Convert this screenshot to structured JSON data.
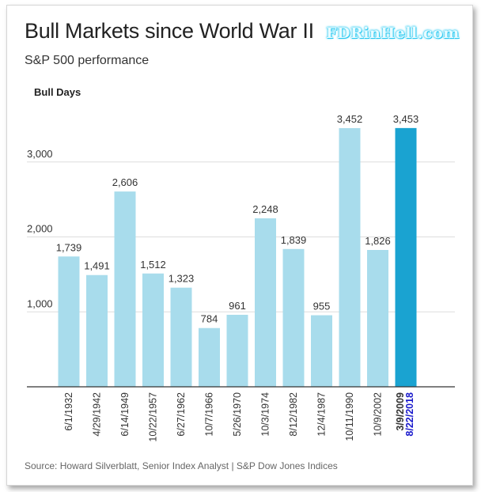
{
  "header": {
    "title": "Bull Markets since World War II",
    "subtitle": "S&P 500 performance",
    "watermark": "FDRinHell.com"
  },
  "footer": {
    "source": "Source: Howard Silverblatt, Senior Index Analyst | S&P Dow Jones Indices"
  },
  "colors": {
    "bar": "#a8dcec",
    "highlight_bar": "#1aa3d1",
    "highlight_end_label": "#1a1acc",
    "grid": "#dddddd",
    "axis": "#333333"
  },
  "chart_data": {
    "type": "bar",
    "ylabel": "Bull Days",
    "ylim": [
      0,
      3800
    ],
    "yticks": [
      1000,
      2000,
      3000
    ],
    "ytick_labels": [
      "1,000",
      "2,000",
      "3,000"
    ],
    "grid": true,
    "categories": [
      "6/1/1932",
      "4/29/1942",
      "6/14/1949",
      "10/22/1957",
      "6/27/1962",
      "10/7/1966",
      "5/26/1970",
      "10/3/1974",
      "8/12/1982",
      "12/4/1987",
      "10/11/1990",
      "10/9/2002",
      "3/9/2009"
    ],
    "values": [
      1739,
      1491,
      2606,
      1512,
      1323,
      784,
      961,
      2248,
      1839,
      955,
      3452,
      1826,
      3453
    ],
    "value_labels": [
      "1,739",
      "1,491",
      "2,606",
      "1,512",
      "1,323",
      "784",
      "961",
      "2,248",
      "1,839",
      "955",
      "3,452",
      "1,826",
      "3,453"
    ],
    "highlight_index": 12,
    "highlight_end_date": "8/22/2018"
  }
}
